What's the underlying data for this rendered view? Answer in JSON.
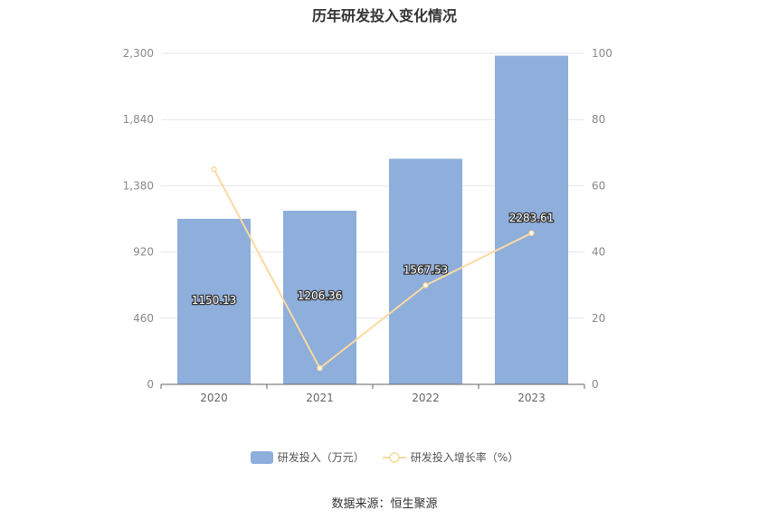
{
  "chart_data": {
    "type": "bar",
    "title": "历年研发投入变化情况",
    "categories": [
      "2020",
      "2021",
      "2022",
      "2023"
    ],
    "series": [
      {
        "name": "研发投入（万元）",
        "type": "bar",
        "axis": "left",
        "values": [
          1150.13,
          1206.36,
          1567.53,
          2283.61
        ],
        "labels": [
          "1150.13",
          "1206.36",
          "1567.53",
          "2283.61"
        ],
        "color": "#8eaedb"
      },
      {
        "name": "研发投入增长率（%）",
        "type": "line",
        "axis": "right",
        "values": [
          65,
          4.89,
          29.94,
          45.68
        ],
        "color": "#fbd9a0"
      }
    ],
    "ylim_left": [
      0,
      2300
    ],
    "yticks_left": [
      "0",
      "460",
      "920",
      "1,380",
      "1,840",
      "2,300"
    ],
    "ylim_right": [
      0,
      100
    ],
    "yticks_right": [
      "0",
      "20",
      "40",
      "60",
      "80",
      "100"
    ],
    "grid": true,
    "legend_position": "bottom"
  },
  "footer": {
    "source": "数据来源：恒生聚源"
  }
}
